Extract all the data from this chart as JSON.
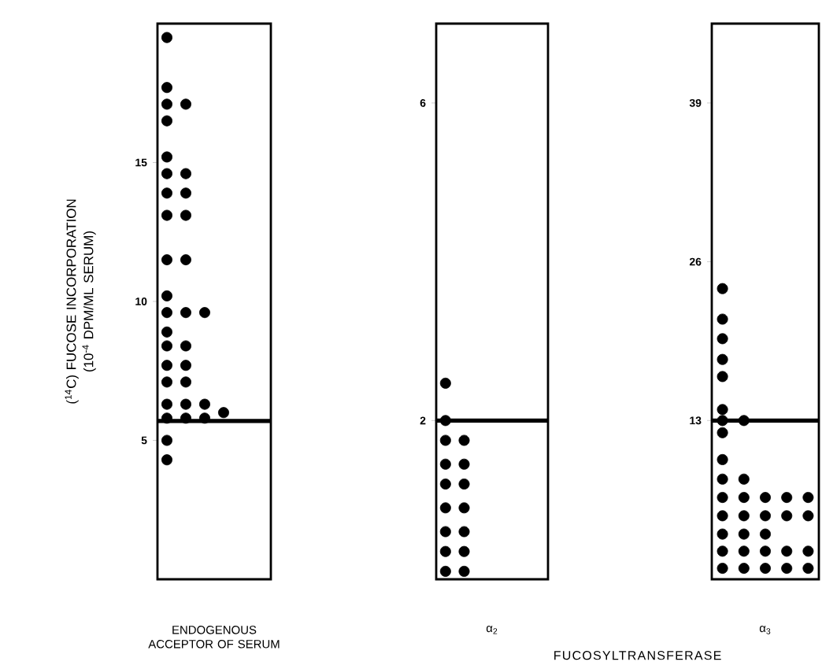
{
  "chart_data": [
    {
      "type": "scatter",
      "ylabel": "($^{14}$C) FUCOSE INCORPORATION (10$^{-4}$ DPM/ML SERUM)",
      "xlabel": "ENDOGENOUS ACCEPTOR OF SERUM",
      "categories": [
        null,
        null,
        null,
        null,
        null,
        null
      ],
      "ylim": [
        0,
        20
      ],
      "yticks": [
        5,
        10,
        15
      ],
      "marker": "circle",
      "series": [
        {
          "color": "#000000",
          "values": [
            19.5,
            null,
            null,
            null,
            null,
            null
          ]
        },
        {
          "color": "#000000",
          "values": [
            17.7,
            null,
            null,
            null,
            null,
            null
          ]
        },
        {
          "color": "#000000",
          "values": [
            17.1,
            17.1,
            null,
            null,
            null,
            null
          ]
        },
        {
          "color": "#000000",
          "values": [
            16.5,
            null,
            null,
            null,
            null,
            null
          ]
        },
        {
          "color": "#000000",
          "values": [
            15.2,
            null,
            null,
            null,
            null,
            null
          ]
        },
        {
          "color": "#000000",
          "values": [
            14.6,
            14.6,
            null,
            null,
            null,
            null
          ]
        },
        {
          "color": "#000000",
          "values": [
            13.9,
            13.9,
            null,
            null,
            null,
            null
          ]
        },
        {
          "color": "#000000",
          "values": [
            13.1,
            13.1,
            null,
            null,
            null,
            null
          ]
        },
        {
          "color": "#000000",
          "values": [
            11.5,
            11.5,
            null,
            null,
            null,
            null
          ]
        },
        {
          "color": "#000000",
          "values": [
            10.2,
            null,
            null,
            null,
            null,
            null
          ]
        },
        {
          "color": "#000000",
          "values": [
            9.6,
            9.6,
            9.6,
            null,
            null,
            null
          ]
        },
        {
          "color": "#000000",
          "values": [
            8.9,
            null,
            null,
            null,
            null,
            null
          ]
        },
        {
          "color": "#000000",
          "values": [
            8.4,
            8.4,
            null,
            null,
            null,
            null
          ]
        },
        {
          "color": "#000000",
          "values": [
            7.7,
            7.7,
            null,
            null,
            null,
            null
          ]
        },
        {
          "color": "#000000",
          "values": [
            7.1,
            7.1,
            null,
            null,
            null,
            null
          ]
        },
        {
          "color": "#000000",
          "values": [
            6.3,
            6.3,
            6.3,
            null,
            null,
            null
          ]
        },
        {
          "color": "#000000",
          "values": [
            null,
            null,
            null,
            6.0,
            null,
            null
          ]
        },
        {
          "color": "#000000",
          "values": [
            5.8,
            5.8,
            5.8,
            null,
            null,
            null
          ]
        },
        {
          "color": "#000000",
          "values": [
            5.0,
            null,
            null,
            null,
            null,
            null
          ]
        },
        {
          "color": "#000000",
          "values": [
            4.3,
            null,
            null,
            null,
            null,
            null
          ]
        }
      ],
      "ref_lines": [
        {
          "axis": "y",
          "value": 5.7
        }
      ]
    },
    {
      "type": "scatter",
      "xlabel": "α$_{2}$",
      "categories": [
        null,
        null,
        null,
        null,
        null,
        null
      ],
      "ylim": [
        0,
        7
      ],
      "yticks": [
        2,
        6
      ],
      "marker": "circle",
      "annotations": [
        "FUCOSYLTRANSFERASE"
      ],
      "series": [
        {
          "color": "#000000",
          "values": [
            2.47,
            null,
            null,
            null,
            null,
            null
          ]
        },
        {
          "color": "#000000",
          "values": [
            2.0,
            null,
            null,
            null,
            null,
            null
          ]
        },
        {
          "color": "#000000",
          "values": [
            1.75,
            1.75,
            null,
            null,
            null,
            null
          ]
        },
        {
          "color": "#000000",
          "values": [
            1.45,
            1.45,
            null,
            null,
            null,
            null
          ]
        },
        {
          "color": "#000000",
          "values": [
            1.2,
            1.2,
            null,
            null,
            null,
            null
          ]
        },
        {
          "color": "#000000",
          "values": [
            0.9,
            0.9,
            null,
            null,
            null,
            null
          ]
        },
        {
          "color": "#000000",
          "values": [
            0.6,
            0.6,
            null,
            null,
            null,
            null
          ]
        },
        {
          "color": "#000000",
          "values": [
            0.35,
            0.35,
            null,
            null,
            null,
            null
          ]
        },
        {
          "color": "#000000",
          "values": [
            0.1,
            0.1,
            null,
            null,
            null,
            null
          ]
        }
      ],
      "ref_lines": [
        {
          "axis": "y",
          "value": 2.0
        }
      ]
    },
    {
      "type": "scatter",
      "xlabel": "α$_{3}$",
      "categories": [
        null,
        null,
        null,
        null,
        null
      ],
      "ylim": [
        0,
        45.5
      ],
      "yticks": [
        13,
        26,
        39
      ],
      "marker": "circle",
      "series": [
        {
          "color": "#000000",
          "values": [
            23.8,
            null,
            null,
            null,
            null
          ]
        },
        {
          "color": "#000000",
          "values": [
            21.3,
            null,
            null,
            null,
            null
          ]
        },
        {
          "color": "#000000",
          "values": [
            19.7,
            null,
            null,
            null,
            null
          ]
        },
        {
          "color": "#000000",
          "values": [
            18.0,
            null,
            null,
            null,
            null
          ]
        },
        {
          "color": "#000000",
          "values": [
            16.6,
            null,
            null,
            null,
            null
          ]
        },
        {
          "color": "#000000",
          "values": [
            13.9,
            null,
            null,
            null,
            null
          ]
        },
        {
          "color": "#000000",
          "values": [
            13.0,
            13.0,
            null,
            null,
            null
          ]
        },
        {
          "color": "#000000",
          "values": [
            12.0,
            null,
            null,
            null,
            null
          ]
        },
        {
          "color": "#000000",
          "values": [
            9.8,
            null,
            null,
            null,
            null
          ]
        },
        {
          "color": "#000000",
          "values": [
            8.2,
            8.2,
            null,
            null,
            null
          ]
        },
        {
          "color": "#000000",
          "values": [
            6.7,
            6.7,
            6.7,
            6.7,
            6.7
          ]
        },
        {
          "color": "#000000",
          "values": [
            5.2,
            5.2,
            5.2,
            5.2,
            5.2
          ]
        },
        {
          "color": "#000000",
          "values": [
            3.7,
            3.7,
            3.7,
            null,
            null
          ]
        },
        {
          "color": "#000000",
          "values": [
            2.3,
            2.3,
            2.3,
            2.3,
            2.3
          ]
        },
        {
          "color": "#000000",
          "values": [
            0.9,
            0.9,
            0.9,
            0.9,
            0.9
          ]
        }
      ],
      "ref_lines": [
        {
          "axis": "y",
          "value": 13.0
        }
      ]
    }
  ]
}
